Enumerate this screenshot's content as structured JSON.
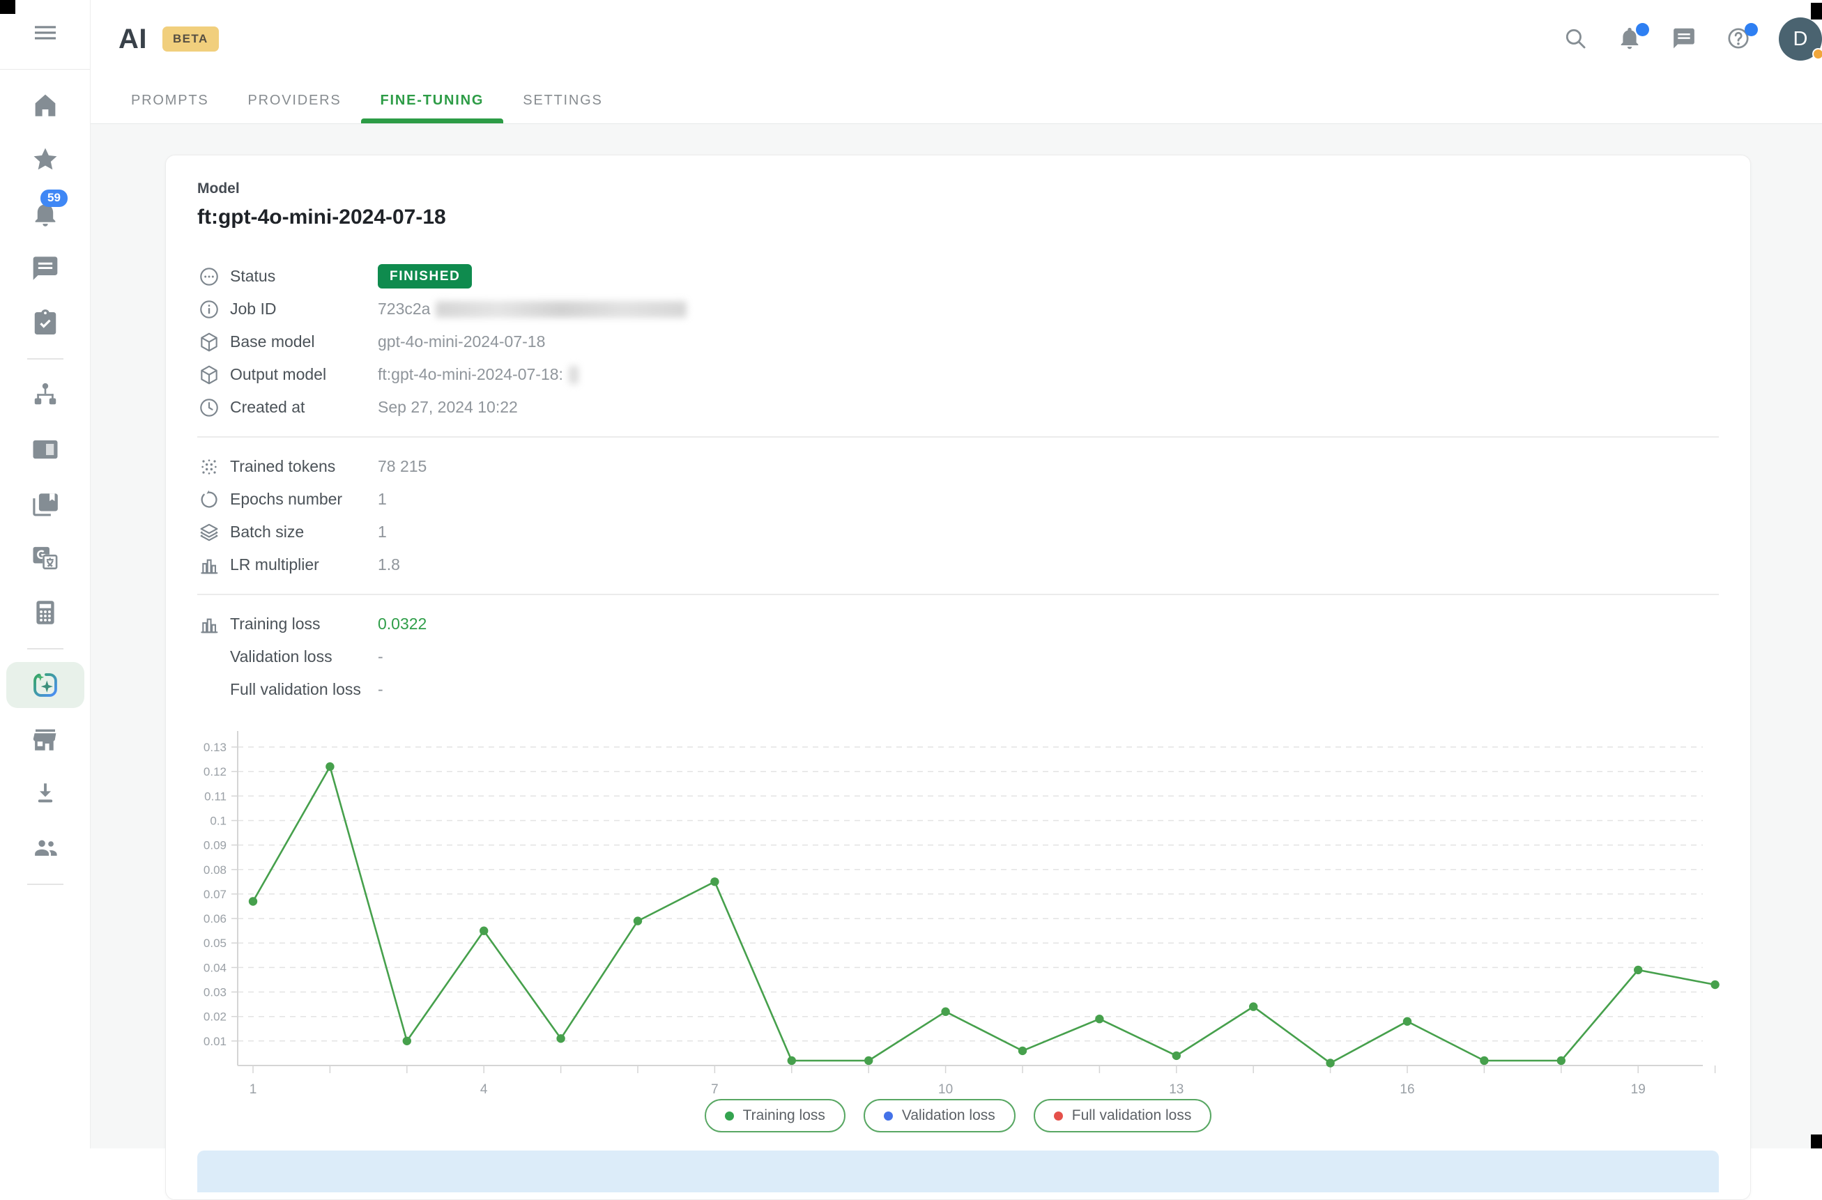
{
  "header": {
    "logo": "AI",
    "beta_badge": "BETA",
    "tabs": [
      {
        "label": "PROMPTS",
        "active": false
      },
      {
        "label": "PROVIDERS",
        "active": false
      },
      {
        "label": "FINE-TUNING",
        "active": true
      },
      {
        "label": "SETTINGS",
        "active": false
      }
    ],
    "actions": [
      {
        "name": "search-button",
        "icon": "search-icon",
        "dot": false
      },
      {
        "name": "notifications-button",
        "icon": "bell-icon",
        "dot": true
      },
      {
        "name": "messages-button",
        "icon": "chat-icon",
        "dot": false
      },
      {
        "name": "help-button",
        "icon": "help-icon",
        "dot": true
      }
    ],
    "avatar": {
      "initial": "D",
      "status_dot": true
    }
  },
  "sidebar": {
    "items": [
      {
        "name": "home",
        "icon": "home-icon"
      },
      {
        "name": "favorites",
        "icon": "star-icon"
      },
      {
        "name": "notifications",
        "icon": "bell-icon",
        "badge": "59"
      },
      {
        "name": "messages",
        "icon": "chat-icon"
      },
      {
        "name": "tasks",
        "icon": "task-icon"
      },
      {
        "type": "divider"
      },
      {
        "name": "workflows",
        "icon": "tree-icon"
      },
      {
        "name": "panels",
        "icon": "panel-icon"
      },
      {
        "name": "library",
        "icon": "library-icon"
      },
      {
        "name": "translate",
        "icon": "translate-icon"
      },
      {
        "name": "calculator",
        "icon": "calculator-icon"
      },
      {
        "type": "divider"
      },
      {
        "name": "ai",
        "icon": "ai-sparkle-icon",
        "active": true
      },
      {
        "name": "store",
        "icon": "store-icon"
      },
      {
        "name": "downloads",
        "icon": "download-icon"
      },
      {
        "name": "users",
        "icon": "people-icon"
      },
      {
        "type": "divider"
      }
    ]
  },
  "model_card": {
    "section_label": "Model",
    "title": "ft:gpt-4o-mini-2024-07-18",
    "info_rows": [
      {
        "icon": "status-icon",
        "label": "Status",
        "value": "FINISHED",
        "badge": true
      },
      {
        "icon": "info-icon",
        "label": "Job ID",
        "value": "723c2a",
        "redacted": "wide"
      },
      {
        "icon": "cube-icon",
        "label": "Base model",
        "value": "gpt-4o-mini-2024-07-18"
      },
      {
        "icon": "cube-icon",
        "label": "Output model",
        "value": "ft:gpt-4o-mini-2024-07-18:",
        "redacted": "small"
      },
      {
        "icon": "clock-icon",
        "label": "Created at",
        "value": "Sep 27, 2024 10:22"
      }
    ],
    "param_rows": [
      {
        "icon": "tokens-icon",
        "label": "Trained tokens",
        "value": "78 215"
      },
      {
        "icon": "epochs-icon",
        "label": "Epochs number",
        "value": "1"
      },
      {
        "icon": "layers-icon",
        "label": "Batch size",
        "value": "1"
      },
      {
        "icon": "barchart-icon",
        "label": "LR multiplier",
        "value": "1.8"
      }
    ],
    "loss_rows": [
      {
        "icon": "barchart-icon",
        "label": "Training loss",
        "value": "0.0322",
        "highlight": true
      },
      {
        "label": "Validation loss",
        "value": "-"
      },
      {
        "label": "Full validation loss",
        "value": "-"
      }
    ]
  },
  "chart_data": {
    "type": "line",
    "title": "",
    "xlabel": "",
    "ylabel": "",
    "x": [
      1,
      2,
      3,
      4,
      5,
      6,
      7,
      8,
      9,
      10,
      11,
      12,
      13,
      14,
      15,
      16,
      17,
      18,
      19,
      20
    ],
    "series": [
      {
        "name": "Training loss",
        "color": "#46a04c",
        "values": [
          0.067,
          0.122,
          0.01,
          0.055,
          0.011,
          0.059,
          0.075,
          0.002,
          0.002,
          0.022,
          0.006,
          0.019,
          0.004,
          0.024,
          0.001,
          0.018,
          0.002,
          0.002,
          0.039,
          0.033
        ]
      },
      {
        "name": "Validation loss",
        "color": "#4472e8",
        "values": []
      },
      {
        "name": "Full validation loss",
        "color": "#e5504a",
        "values": []
      }
    ],
    "ylim": [
      0,
      0.134
    ],
    "yticks": [
      0.01,
      0.02,
      0.03,
      0.04,
      0.05,
      0.06,
      0.07,
      0.08,
      0.09,
      0.1,
      0.11,
      0.12,
      0.13
    ],
    "xticks_labeled": [
      1,
      4,
      7,
      10,
      13,
      16,
      19
    ],
    "grid": "dashed-horizontal",
    "legend_position": "bottom"
  },
  "legend": [
    {
      "label": "Training loss",
      "color": "#34a34f"
    },
    {
      "label": "Validation loss",
      "color": "#4472e8"
    },
    {
      "label": "Full validation loss",
      "color": "#e5504a"
    }
  ],
  "colors": {
    "accent_green": "#2d9c46",
    "badge_green": "#0f8b4e",
    "chart_line_green": "#46a04c",
    "notification_blue": "#2e7ff2",
    "avatar_orange": "#f0a63b",
    "beta_bg": "#f1cf7d",
    "content_bg": "#f6f7f7",
    "highlight_bar_blue": "#dcecf9"
  }
}
